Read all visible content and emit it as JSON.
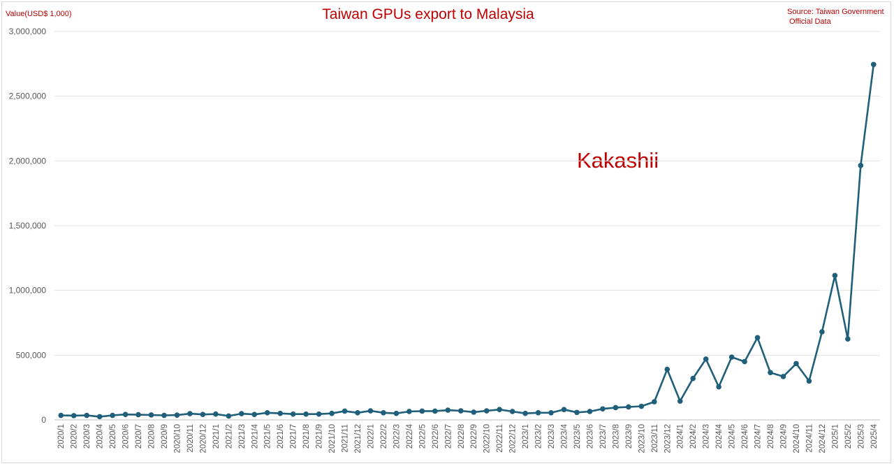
{
  "chart_data": {
    "type": "line",
    "title": "Taiwan GPUs export to Malaysia",
    "ylabel": "Value(USD$ 1,000)",
    "source_line1": "Source: Taiwan Government",
    "source_line2": "Official Data",
    "annotation": "Kakashii",
    "ylim": [
      0,
      3000000
    ],
    "yticks": [
      0,
      500000,
      1000000,
      1500000,
      2000000,
      2500000,
      3000000
    ],
    "ytick_labels": [
      "0",
      "500,000",
      "1,000,000",
      "1,500,000",
      "2,000,000",
      "2,500,000",
      "3,000,000"
    ],
    "grid": true,
    "legend": "none",
    "line_color": "#1f5f7a",
    "categories": [
      "2020/1",
      "2020/2",
      "2020/3",
      "2020/4",
      "2020/5",
      "2020/6",
      "2020/7",
      "2020/8",
      "2020/9",
      "2020/10",
      "2020/11",
      "2020/12",
      "2021/1",
      "2021/2",
      "2021/3",
      "2021/4",
      "2021/5",
      "2021/6",
      "2021/7",
      "2021/8",
      "2021/9",
      "2021/10",
      "2021/11",
      "2021/12",
      "2022/1",
      "2022/2",
      "2022/3",
      "2022/4",
      "2022/5",
      "2022/6",
      "2022/7",
      "2022/8",
      "2022/9",
      "2022/10",
      "2022/11",
      "2022/12",
      "2023/1",
      "2023/2",
      "2023/3",
      "2023/4",
      "2023/5",
      "2023/6",
      "2023/7",
      "2023/8",
      "2023/9",
      "2023/10",
      "2023/11",
      "2023/12",
      "2024/1",
      "2024/2",
      "2024/3",
      "2024/4",
      "2024/5",
      "2024/6",
      "2024/7",
      "2024/8",
      "2024/9",
      "2024/10",
      "2024/11",
      "2024/12",
      "2025/1",
      "2025/2",
      "2025/3",
      "2025/4"
    ],
    "values": [
      35000,
      33000,
      35000,
      25000,
      35000,
      42000,
      40000,
      38000,
      35000,
      37000,
      48000,
      42000,
      45000,
      30000,
      48000,
      42000,
      55000,
      50000,
      45000,
      45000,
      45000,
      50000,
      68000,
      55000,
      70000,
      55000,
      50000,
      65000,
      68000,
      68000,
      75000,
      70000,
      60000,
      70000,
      80000,
      65000,
      50000,
      55000,
      55000,
      80000,
      58000,
      65000,
      85000,
      95000,
      100000,
      105000,
      140000,
      390000,
      145000,
      320000,
      470000,
      255000,
      485000,
      450000,
      635000,
      365000,
      335000,
      435000,
      300000,
      680000,
      1115000,
      625000,
      1965000,
      2745000
    ]
  }
}
